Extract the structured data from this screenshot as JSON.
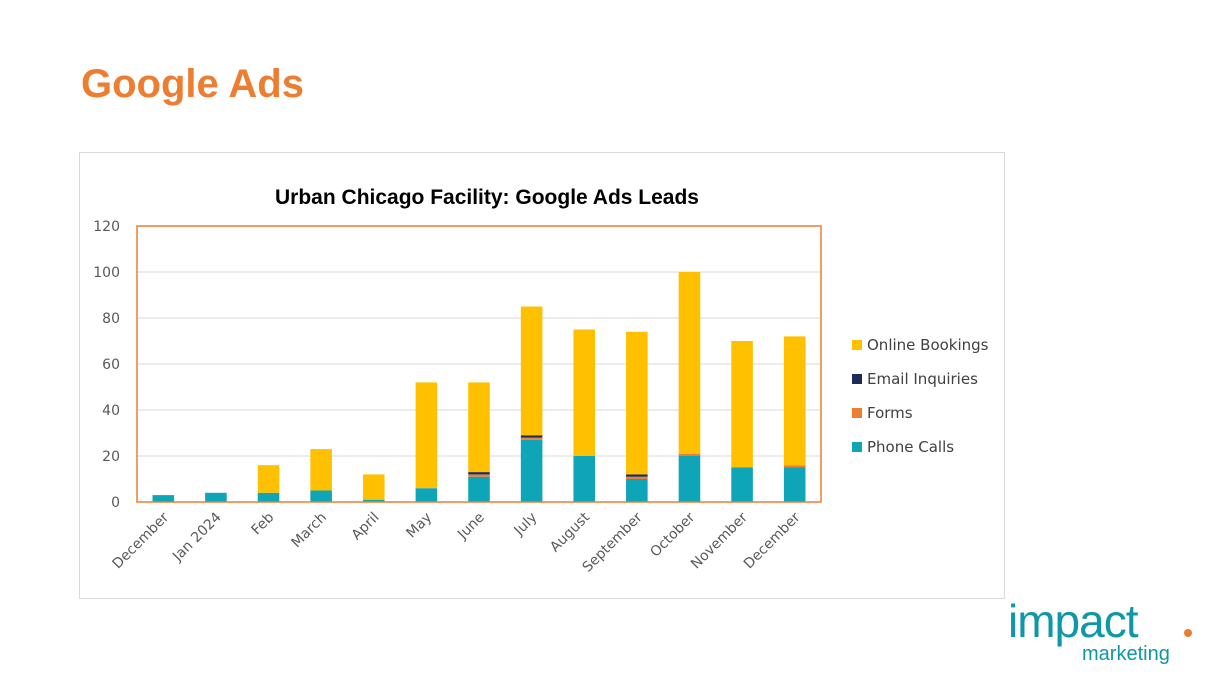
{
  "slide": {
    "title": "Google Ads"
  },
  "logo": {
    "main": "impact",
    "sub": "marketing"
  },
  "colors": {
    "title_accent": "#ED7D31",
    "phone_calls": "#0EA5B8",
    "forms": "#ED7D31",
    "email_inquiries": "#1F2A5C",
    "online_bookings": "#FFC000",
    "plot_border": "#ED7D31",
    "logo": "#0E97A6"
  },
  "chart_data": {
    "type": "bar",
    "stacked": true,
    "title": "Urban Chicago Facility: Google Ads Leads",
    "xlabel": "",
    "ylabel": "",
    "ylim": [
      0,
      120
    ],
    "yticks": [
      0,
      20,
      40,
      60,
      80,
      100,
      120
    ],
    "grid": true,
    "legend_position": "right",
    "categories": [
      "December",
      "Jan 2024",
      "Feb",
      "March",
      "April",
      "May",
      "June",
      "July",
      "August",
      "September",
      "October",
      "November",
      "December"
    ],
    "series": [
      {
        "name": "Phone Calls",
        "color": "#0EA5B8",
        "values": [
          3,
          4,
          4,
          5,
          1,
          6,
          11,
          27,
          20,
          10,
          20,
          15,
          15
        ]
      },
      {
        "name": "Forms",
        "color": "#ED7D31",
        "values": [
          0,
          0,
          0,
          0,
          0,
          0,
          1,
          1,
          0,
          1,
          1,
          0,
          1
        ]
      },
      {
        "name": "Email Inquiries",
        "color": "#1F2A5C",
        "values": [
          0,
          0,
          0,
          0,
          0,
          0,
          1,
          1,
          0,
          1,
          0,
          0,
          0
        ]
      },
      {
        "name": "Online Bookings",
        "color": "#FFC000",
        "values": [
          0,
          0,
          12,
          18,
          11,
          46,
          39,
          56,
          55,
          62,
          79,
          55,
          56
        ]
      }
    ]
  }
}
